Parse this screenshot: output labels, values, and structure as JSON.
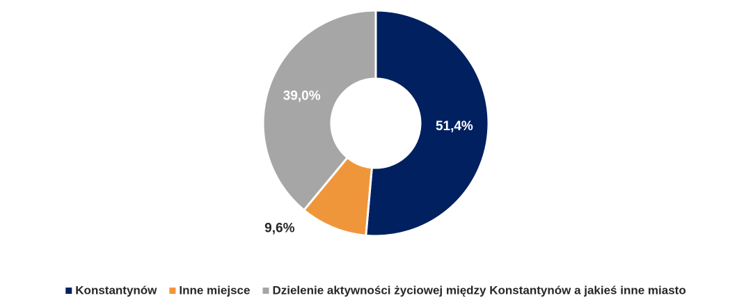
{
  "chart_data": {
    "type": "donut",
    "categories": [
      "Konstantynów",
      "Inne miejsce",
      "Dzielenie aktywności życiowej między Konstantynów a jakieś inne miasto"
    ],
    "values": [
      51.4,
      9.6,
      39.0
    ],
    "value_labels": [
      "51,4%",
      "9,6%",
      "39,0%"
    ],
    "colors": [
      "#002060",
      "#f0963a",
      "#a6a6a6"
    ],
    "legend": "bottom"
  }
}
